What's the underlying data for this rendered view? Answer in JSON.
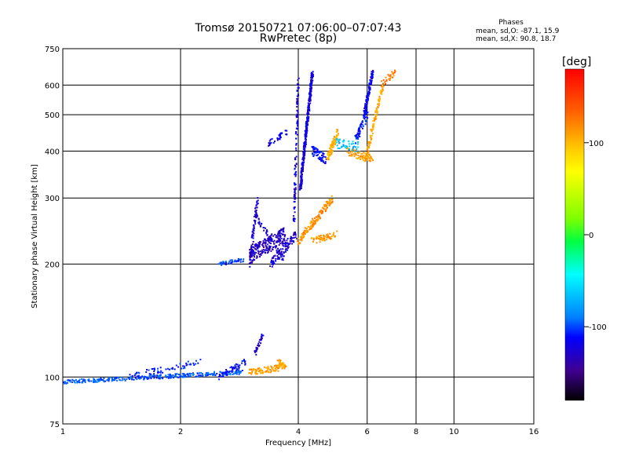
{
  "chart_data": {
    "type": "scatter",
    "title": "Tromsø 20150721 07:06:00–07:07:43",
    "subtitle": "RwPretec (8p)",
    "xlabel": "Frequency [MHz]",
    "ylabel": "Stationary phase Virtual Height [km]",
    "x_scale": "log",
    "y_scale": "log",
    "xlim": [
      1,
      16
    ],
    "ylim": [
      75,
      750
    ],
    "x_ticks": [
      1,
      2,
      4,
      6,
      8,
      10,
      16
    ],
    "y_ticks": [
      75,
      100,
      200,
      300,
      400,
      500,
      600,
      750
    ],
    "x_tick_labels": [
      "1",
      "2",
      "4",
      "6",
      "8",
      "10",
      "16"
    ],
    "y_tick_labels": [
      "75",
      "100",
      "200",
      "300",
      "400",
      "500",
      "600",
      "750"
    ],
    "grid": true,
    "stats": {
      "heading": "Phases",
      "o_line": "mean, sd,O: -87.1, 15.9",
      "x_line": "mean, sd,X:  90.8, 18.7"
    },
    "colorbar": {
      "label": "[deg]",
      "range": [
        -180,
        180
      ],
      "ticks": [
        100,
        0,
        -100
      ],
      "tick_labels": [
        "100",
        "0",
        "-100"
      ]
    },
    "traces": [
      {
        "x_from": 1.0,
        "x_to": 2.9,
        "h_from": 97,
        "h_to": 103,
        "phase": -95,
        "count": 340,
        "spread": 0.012
      },
      {
        "x_from": 1.45,
        "x_to": 2.25,
        "h_from": 100,
        "h_to": 110,
        "phase": -110,
        "count": 60,
        "spread": 0.02
      },
      {
        "x_from": 2.5,
        "x_to": 2.95,
        "h_from": 100,
        "h_to": 110,
        "phase": -115,
        "count": 60,
        "spread": 0.02
      },
      {
        "x_from": 2.5,
        "x_to": 2.9,
        "h_from": 200,
        "h_to": 205,
        "phase": -100,
        "count": 45,
        "spread": 0.012
      },
      {
        "x_from": 3.0,
        "x_to": 3.15,
        "h_from": 200,
        "h_to": 300,
        "phase": -130,
        "count": 70,
        "spread": 0.02
      },
      {
        "x_from": 3.0,
        "x_to": 3.7,
        "h_from": 210,
        "h_to": 240,
        "phase": -135,
        "count": 220,
        "spread": 0.05
      },
      {
        "x_from": 3.4,
        "x_to": 3.95,
        "h_from": 200,
        "h_to": 240,
        "phase": -130,
        "count": 110,
        "spread": 0.03
      },
      {
        "x_from": 3.1,
        "x_to": 3.7,
        "h_from": 270,
        "h_to": 205,
        "phase": -130,
        "count": 50,
        "spread": 0.02
      },
      {
        "x_from": 3.35,
        "x_to": 3.75,
        "h_from": 420,
        "h_to": 450,
        "phase": -120,
        "count": 40,
        "spread": 0.02
      },
      {
        "x_from": 3.9,
        "x_to": 4.0,
        "h_from": 260,
        "h_to": 620,
        "phase": -125,
        "count": 110,
        "spread": 0.01
      },
      {
        "x_from": 4.05,
        "x_to": 4.35,
        "h_from": 320,
        "h_to": 650,
        "phase": -125,
        "count": 380,
        "spread": 0.02
      },
      {
        "x_from": 4.35,
        "x_to": 4.7,
        "h_from": 400,
        "h_to": 380,
        "phase": -115,
        "count": 70,
        "spread": 0.03
      },
      {
        "x_from": 4.75,
        "x_to": 5.05,
        "h_from": 380,
        "h_to": 450,
        "phase": 110,
        "count": 90,
        "spread": 0.03
      },
      {
        "x_from": 4.0,
        "x_to": 4.9,
        "h_from": 230,
        "h_to": 300,
        "phase": 120,
        "count": 160,
        "spread": 0.025
      },
      {
        "x_from": 4.3,
        "x_to": 5.0,
        "h_from": 230,
        "h_to": 240,
        "phase": 115,
        "count": 60,
        "spread": 0.02
      },
      {
        "x_from": 5.3,
        "x_to": 6.2,
        "h_from": 400,
        "h_to": 380,
        "phase": 115,
        "count": 90,
        "spread": 0.025
      },
      {
        "x_from": 6.0,
        "x_to": 6.6,
        "h_from": 400,
        "h_to": 600,
        "phase": 110,
        "count": 110,
        "spread": 0.02
      },
      {
        "x_from": 5.0,
        "x_to": 5.7,
        "h_from": 420,
        "h_to": 410,
        "phase": -60,
        "count": 50,
        "spread": 0.03
      },
      {
        "x_from": 5.6,
        "x_to": 6.0,
        "h_from": 430,
        "h_to": 500,
        "phase": -110,
        "count": 60,
        "spread": 0.03
      },
      {
        "x_from": 5.9,
        "x_to": 6.2,
        "h_from": 500,
        "h_to": 650,
        "phase": -120,
        "count": 120,
        "spread": 0.015
      },
      {
        "x_from": 6.5,
        "x_to": 7.1,
        "h_from": 600,
        "h_to": 650,
        "phase": 130,
        "count": 30,
        "spread": 0.02
      },
      {
        "x_from": 3.0,
        "x_to": 3.6,
        "h_from": 103,
        "h_to": 106,
        "phase": 115,
        "count": 90,
        "spread": 0.02
      },
      {
        "x_from": 3.55,
        "x_to": 3.75,
        "h_from": 110,
        "h_to": 105,
        "phase": 110,
        "count": 40,
        "spread": 0.02
      },
      {
        "x_from": 3.1,
        "x_to": 3.25,
        "h_from": 115,
        "h_to": 130,
        "phase": -130,
        "count": 30,
        "spread": 0.02
      }
    ]
  }
}
